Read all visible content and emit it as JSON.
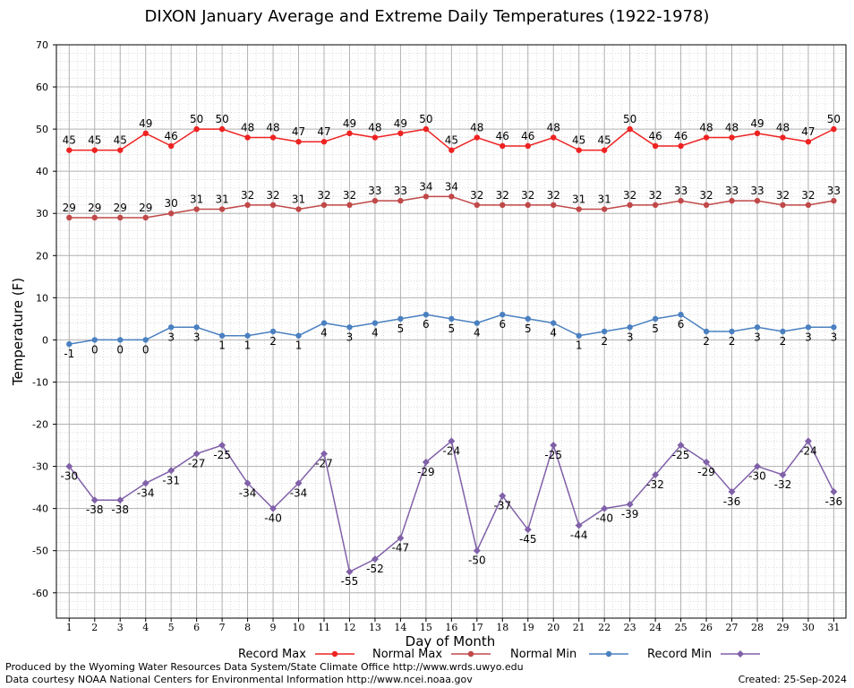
{
  "chart_data": {
    "type": "line",
    "title": "DIXON January Average and Extreme Daily Temperatures (1922-1978)",
    "xlabel": "Day of Month",
    "ylabel": "Temperature (F)",
    "x": [
      1,
      2,
      3,
      4,
      5,
      6,
      7,
      8,
      9,
      10,
      11,
      12,
      13,
      14,
      15,
      16,
      17,
      18,
      19,
      20,
      21,
      22,
      23,
      24,
      25,
      26,
      27,
      28,
      29,
      30,
      31
    ],
    "ylim": [
      -66,
      70
    ],
    "yticks": [
      70,
      60,
      50,
      40,
      30,
      20,
      10,
      0,
      -10,
      -20,
      -30,
      -40,
      -50,
      -60
    ],
    "grid": true,
    "legend_position": "bottom",
    "series": [
      {
        "name": "Record Max",
        "color": "#ee2222",
        "values": [
          45,
          45,
          45,
          49,
          46,
          50,
          50,
          48,
          48,
          47,
          47,
          49,
          48,
          49,
          50,
          45,
          48,
          46,
          46,
          48,
          45,
          45,
          50,
          46,
          46,
          48,
          48,
          49,
          48,
          47,
          50
        ]
      },
      {
        "name": "Normal Max",
        "color": "#c04848",
        "values": [
          29,
          29,
          29,
          29,
          30,
          31,
          31,
          32,
          32,
          31,
          32,
          32,
          33,
          33,
          34,
          34,
          32,
          32,
          32,
          32,
          31,
          31,
          32,
          32,
          33,
          32,
          33,
          33,
          32,
          32,
          33
        ]
      },
      {
        "name": "Normal Min",
        "color": "#4a80c0",
        "values": [
          -1,
          0,
          0,
          0,
          3,
          3,
          1,
          1,
          2,
          1,
          4,
          3,
          4,
          5,
          6,
          5,
          4,
          6,
          5,
          4,
          1,
          2,
          3,
          5,
          6,
          2,
          2,
          3,
          2,
          3,
          3
        ]
      },
      {
        "name": "Record Min",
        "color": "#8060a8",
        "values": [
          -30,
          -38,
          -38,
          -34,
          -31,
          -27,
          -25,
          -34,
          -40,
          -34,
          -27,
          -55,
          -52,
          -47,
          -29,
          -24,
          -50,
          -37,
          -45,
          -25,
          -44,
          -40,
          -39,
          -32,
          -25,
          -29,
          -36,
          -30,
          -32,
          -24,
          -36
        ]
      }
    ]
  },
  "footer": {
    "line1": "Produced by the Wyoming Water Resources Data System/State Climate Office http://www.wrds.uwyo.edu",
    "line2": "Data courtesy NOAA National Centers for Environmental Information http://www.ncei.noaa.gov",
    "created": "Created:  25-Sep-2024"
  }
}
